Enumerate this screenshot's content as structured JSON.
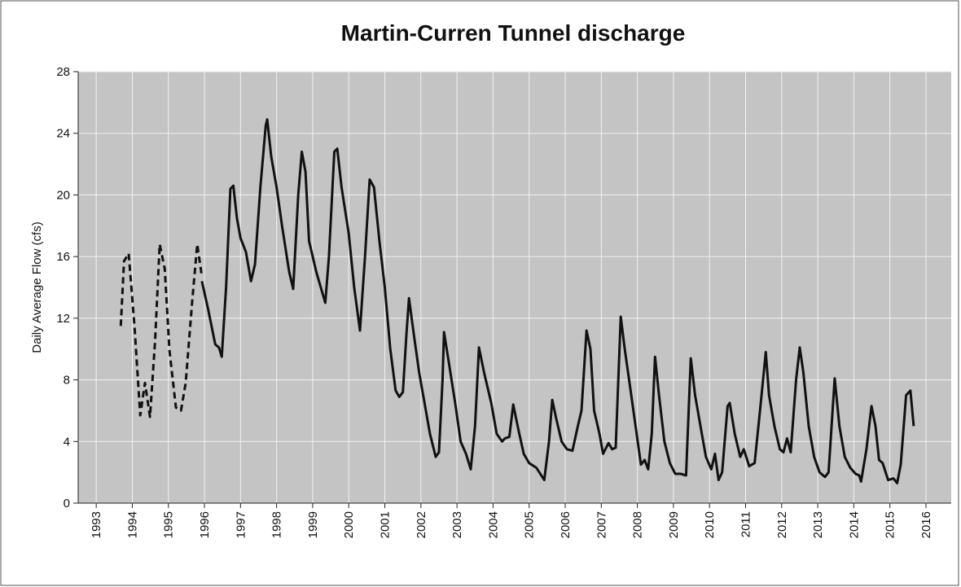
{
  "chart_data": {
    "type": "line",
    "title": "Martin-Curren Tunnel discharge",
    "y_label": "Daily Average Flow (cfs)",
    "xlim": [
      1992.5,
      2016.7
    ],
    "xticks": [
      1993,
      1994,
      1995,
      1996,
      1997,
      1998,
      1999,
      2000,
      2001,
      2002,
      2003,
      2004,
      2005,
      2006,
      2007,
      2008,
      2009,
      2010,
      2011,
      2012,
      2013,
      2014,
      2015,
      2016
    ],
    "ylim": [
      0,
      28
    ],
    "yticks": [
      0,
      4,
      8,
      12,
      16,
      20,
      24,
      28
    ],
    "grid": true,
    "series": [
      {
        "color": "#111111",
        "dashed": true,
        "x": [
          1993.68,
          1993.77,
          1993.9,
          1994.06,
          1994.22,
          1994.35,
          1994.49,
          1994.63,
          1994.76,
          1994.9,
          1995.03,
          1995.21,
          1995.35,
          1995.48,
          1995.66,
          1995.8,
          1995.93
        ],
        "values": [
          11.5,
          15.7,
          16.2,
          11.5,
          5.7,
          7.8,
          5.6,
          10.5,
          16.8,
          15.2,
          9.9,
          6.2,
          6.0,
          7.8,
          13.1,
          16.8,
          14.7
        ]
      },
      {
        "color": "#111111",
        "dashed": false,
        "x": [
          1995.93,
          1996.1,
          1996.3,
          1996.4,
          1996.48,
          1996.6,
          1996.72,
          1996.8,
          1996.9,
          1997.0,
          1997.15,
          1997.29,
          1997.4,
          1997.55,
          1997.7,
          1997.74,
          1997.85,
          1998.0,
          1998.15,
          1998.35,
          1998.46,
          1998.6,
          1998.7,
          1998.8,
          1998.9,
          1999.1,
          1999.25,
          1999.35,
          1999.45,
          1999.6,
          1999.68,
          1999.8,
          2000.0,
          2000.15,
          2000.31,
          2000.45,
          2000.58,
          2000.7,
          2000.85,
          2001.0,
          2001.15,
          2001.3,
          2001.4,
          2001.5,
          2001.6,
          2001.67,
          2001.8,
          2001.95,
          2002.1,
          2002.25,
          2002.41,
          2002.5,
          2002.6,
          2002.64,
          2002.75,
          2002.95,
          2003.1,
          2003.25,
          2003.38,
          2003.5,
          2003.61,
          2003.75,
          2003.95,
          2004.1,
          2004.25,
          2004.33,
          2004.45,
          2004.56,
          2004.7,
          2004.85,
          2005.0,
          2005.2,
          2005.42,
          2005.55,
          2005.64,
          2005.75,
          2005.9,
          2006.05,
          2006.2,
          2006.35,
          2006.45,
          2006.59,
          2006.7,
          2006.8,
          2006.95,
          2007.05,
          2007.2,
          2007.3,
          2007.4,
          2007.54,
          2007.65,
          2007.8,
          2007.95,
          2008.1,
          2008.2,
          2008.3,
          2008.4,
          2008.49,
          2008.6,
          2008.75,
          2008.9,
          2009.05,
          2009.2,
          2009.35,
          2009.48,
          2009.6,
          2009.75,
          2009.9,
          2010.05,
          2010.15,
          2010.25,
          2010.35,
          2010.5,
          2010.56,
          2010.7,
          2010.85,
          2010.95,
          2011.1,
          2011.25,
          2011.4,
          2011.56,
          2011.65,
          2011.8,
          2011.95,
          2012.05,
          2012.15,
          2012.25,
          2012.4,
          2012.5,
          2012.6,
          2012.75,
          2012.9,
          2013.05,
          2013.2,
          2013.3,
          2013.47,
          2013.6,
          2013.75,
          2013.9,
          2014.05,
          2014.15,
          2014.2,
          2014.35,
          2014.49,
          2014.6,
          2014.7,
          2014.8,
          2014.95,
          2015.1,
          2015.2,
          2015.3,
          2015.45,
          2015.57,
          2015.66
        ],
        "values": [
          14.4,
          12.6,
          10.3,
          10.1,
          9.5,
          14,
          20.4,
          20.6,
          18.5,
          17.2,
          16.3,
          14.4,
          15.5,
          20.5,
          24.5,
          24.9,
          22.5,
          20.5,
          18,
          15,
          13.9,
          20,
          22.8,
          21.5,
          17,
          15,
          13.8,
          13,
          16,
          22.8,
          23,
          20.5,
          17.5,
          14,
          11.2,
          16,
          21,
          20.5,
          17,
          14,
          10,
          7.3,
          6.9,
          7.2,
          11,
          13.3,
          11,
          8.5,
          6.5,
          4.5,
          3.0,
          3.3,
          8,
          11.1,
          9.5,
          6.5,
          4,
          3.2,
          2.2,
          5,
          10.1,
          8.5,
          6.5,
          4.5,
          4.0,
          4.2,
          4.3,
          6.4,
          4.8,
          3.2,
          2.6,
          2.3,
          1.5,
          4,
          6.7,
          5.5,
          4,
          3.5,
          3.4,
          5,
          6,
          11.2,
          10,
          6,
          4.5,
          3.2,
          3.9,
          3.5,
          3.6,
          12.1,
          10,
          7.5,
          5,
          2.5,
          2.8,
          2.2,
          4.5,
          9.5,
          7,
          4,
          2.6,
          1.9,
          1.9,
          1.8,
          9.4,
          7,
          5,
          3,
          2.2,
          3.2,
          1.5,
          2,
          6.3,
          6.5,
          4.5,
          3,
          3.5,
          2.4,
          2.6,
          6,
          9.8,
          7,
          5,
          3.5,
          3.3,
          4.2,
          3.3,
          8,
          10.1,
          8.5,
          5,
          3,
          2,
          1.7,
          2,
          8.1,
          5,
          3,
          2.3,
          1.9,
          1.8,
          1.4,
          3.5,
          6.3,
          5,
          2.8,
          2.6,
          1.5,
          1.6,
          1.3,
          2.5,
          7,
          7.3,
          5
        ]
      }
    ]
  }
}
